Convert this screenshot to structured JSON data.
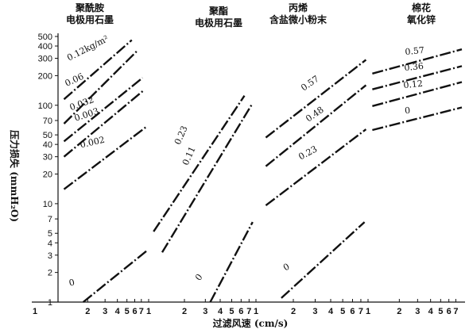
{
  "chart_data": {
    "type": "line",
    "ylabel": "压力损失 (mmH₂O)",
    "xlabel": "过滤风速 (cm/s)",
    "yscale": "log",
    "ylim": [
      1,
      500
    ],
    "y_ticks": [
      "1",
      "2",
      "3",
      "4",
      "5",
      "7",
      "10",
      "20",
      "30",
      "40",
      "50",
      "70",
      "100",
      "200",
      "300",
      "400",
      "500"
    ],
    "panels": [
      {
        "title_lines": [
          "聚酰胺",
          "电极用石墨"
        ],
        "x_ticks": [
          "1",
          "2",
          "3",
          "4",
          "5",
          "6",
          "7"
        ],
        "xlim": [
          1,
          8
        ],
        "series": [
          {
            "name": "0.12kg/m²",
            "x": [
              1.15,
              5.6
            ],
            "y": [
              115,
              460
            ]
          },
          {
            "name": "0.06",
            "x": [
              1.15,
              6.4
            ],
            "y": [
              65,
              360
            ]
          },
          {
            "name": "0.032",
            "x": [
              1.15,
              7.2
            ],
            "y": [
              43,
              190
            ]
          },
          {
            "name": "0.003",
            "x": [
              1.15,
              7.4
            ],
            "y": [
              30,
              142
            ]
          },
          {
            "name": "0.002",
            "x": [
              1.15,
              7.8
            ],
            "y": [
              14,
              60
            ]
          },
          {
            "name": "0",
            "x": [
              1.8,
              7.9
            ],
            "y": [
              1.0,
              3.3
            ]
          }
        ]
      },
      {
        "title_lines": [
          "聚酯",
          "电极用石墨"
        ],
        "x_ticks": [
          "1",
          "2",
          "3",
          "4",
          "5",
          "6",
          "7"
        ],
        "xlim": [
          1,
          8
        ],
        "series": [
          {
            "name": "0.23",
            "x": [
              1.1,
              6.4
            ],
            "y": [
              5.2,
              125
            ]
          },
          {
            "name": "0.11",
            "x": [
              1.3,
              7.5
            ],
            "y": [
              3.2,
              105
            ]
          },
          {
            "name": "0",
            "x": [
              3.3,
              7.5
            ],
            "y": [
              1.0,
              6.5
            ]
          }
        ]
      },
      {
        "title_lines": [
          "丙烯",
          "含盐微小粉末"
        ],
        "x_ticks": [
          "1",
          "2",
          "3",
          "4",
          "5",
          "6",
          "7"
        ],
        "xlim": [
          1,
          8
        ],
        "series": [
          {
            "name": "0.57",
            "x": [
              1.2,
              7.7
            ],
            "y": [
              47,
              290
            ]
          },
          {
            "name": "0.48",
            "x": [
              1.2,
              7.7
            ],
            "y": [
              24,
              160
            ]
          },
          {
            "name": "0.23",
            "x": [
              1.2,
              7.7
            ],
            "y": [
              9.6,
              57
            ]
          },
          {
            "name": "0",
            "x": [
              1.6,
              7.5
            ],
            "y": [
              1.1,
              6.5
            ]
          }
        ]
      },
      {
        "title_lines": [
          "棉花",
          "氧化锌"
        ],
        "x_ticks": [
          "1",
          "2",
          "3",
          "4",
          "5",
          "6",
          "7"
        ],
        "xlim": [
          1,
          8
        ],
        "series": [
          {
            "name": "0.57",
            "x": [
              1.1,
              8
            ],
            "y": [
              210,
              370
            ]
          },
          {
            "name": "0.36",
            "x": [
              1.1,
              8
            ],
            "y": [
              145,
              250
            ]
          },
          {
            "name": "0.12",
            "x": [
              1.1,
              8
            ],
            "y": [
              98,
              172
            ]
          },
          {
            "name": "0",
            "x": [
              1.1,
              8
            ],
            "y": [
              56,
              95
            ]
          }
        ]
      }
    ]
  }
}
